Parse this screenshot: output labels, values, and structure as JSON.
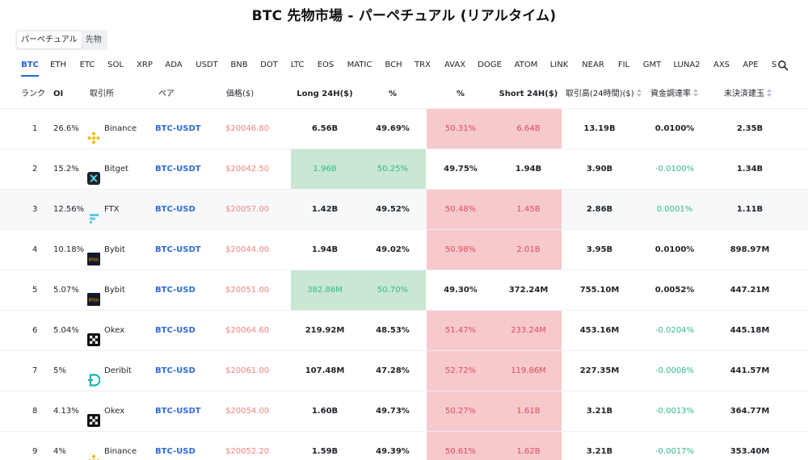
{
  "title": "BTC 先物市場 - パーペチュアル (リアルタイム)",
  "mode_toggle": {
    "options": [
      "パーペチュアル",
      "先物"
    ],
    "active": 0
  },
  "coin_tabs": [
    "BTC",
    "ETH",
    "ETC",
    "SOL",
    "XRP",
    "ADA",
    "USDT",
    "BNB",
    "DOT",
    "LTC",
    "EOS",
    "MATIC",
    "BCH",
    "TRX",
    "AVAX",
    "DOGE",
    "ATOM",
    "LINK",
    "NEAR",
    "FIL",
    "GMT",
    "LUNA2",
    "AXS",
    "APE",
    "S"
  ],
  "active_coin": 0,
  "search": {
    "icon": "search-icon"
  },
  "columns": {
    "rank": "ランク",
    "oi": "OI",
    "exchange": "取引所",
    "pair": "ペア",
    "price": "価格($)",
    "long24h": "Long 24H($)",
    "long_pct": "%",
    "short_pct": "%",
    "short24h": "Short 24H($)",
    "volume": "取引高(24時間)($)",
    "funding": "資金調達率",
    "open_interest": "未決済建玉"
  },
  "colors": {
    "accent": "#1e63d6",
    "long_bg": "#c9e7d3",
    "short_bg": "#f6c9cd",
    "positive": "#2ebd85",
    "negative": "#e04a59"
  },
  "rows": [
    {
      "rank": "1",
      "oi": "26.6%",
      "exchange": "Binance",
      "logo": "binance",
      "pair": "BTC-USDT",
      "price": "$20046.80",
      "long": "6.56B",
      "long_pct": "49.69%",
      "short_pct": "50.31%",
      "short": "6.64B",
      "volume": "13.19B",
      "funding": "0.0100%",
      "funding_sign": "neutral",
      "open_interest": "2.35B",
      "dominant": "short"
    },
    {
      "rank": "2",
      "oi": "15.2%",
      "exchange": "Bitget",
      "logo": "bitget",
      "pair": "BTC-USDT",
      "price": "$20042.50",
      "long": "1.96B",
      "long_pct": "50.25%",
      "short_pct": "49.75%",
      "short": "1.94B",
      "volume": "3.90B",
      "funding": "-0.0100%",
      "funding_sign": "negative",
      "open_interest": "1.34B",
      "dominant": "long"
    },
    {
      "rank": "3",
      "oi": "12.56%",
      "exchange": "FTX",
      "logo": "ftx",
      "pair": "BTC-USD",
      "price": "$20057.00",
      "long": "1.42B",
      "long_pct": "49.52%",
      "short_pct": "50.48%",
      "short": "1.45B",
      "volume": "2.86B",
      "funding": "0.0001%",
      "funding_sign": "positive",
      "open_interest": "1.11B",
      "dominant": "short",
      "highlight": true
    },
    {
      "rank": "4",
      "oi": "10.18%",
      "exchange": "Bybit",
      "logo": "bybit",
      "pair": "BTC-USDT",
      "price": "$20044.00",
      "long": "1.94B",
      "long_pct": "49.02%",
      "short_pct": "50.98%",
      "short": "2.01B",
      "volume": "3.95B",
      "funding": "0.0100%",
      "funding_sign": "neutral",
      "open_interest": "898.97M",
      "dominant": "short"
    },
    {
      "rank": "5",
      "oi": "5.07%",
      "exchange": "Bybit",
      "logo": "bybit",
      "pair": "BTC-USD",
      "price": "$20051.00",
      "long": "382.86M",
      "long_pct": "50.70%",
      "short_pct": "49.30%",
      "short": "372.24M",
      "volume": "755.10M",
      "funding": "0.0052%",
      "funding_sign": "neutral",
      "open_interest": "447.21M",
      "dominant": "long"
    },
    {
      "rank": "6",
      "oi": "5.04%",
      "exchange": "Okex",
      "logo": "okex",
      "pair": "BTC-USD",
      "price": "$20064.60",
      "long": "219.92M",
      "long_pct": "48.53%",
      "short_pct": "51.47%",
      "short": "233.24M",
      "volume": "453.16M",
      "funding": "-0.0204%",
      "funding_sign": "negative",
      "open_interest": "445.18M",
      "dominant": "short"
    },
    {
      "rank": "7",
      "oi": "5%",
      "exchange": "Deribit",
      "logo": "deribit",
      "pair": "BTC-USD",
      "price": "$20061.00",
      "long": "107.48M",
      "long_pct": "47.28%",
      "short_pct": "52.72%",
      "short": "119.86M",
      "volume": "227.35M",
      "funding": "-0.0008%",
      "funding_sign": "negative",
      "open_interest": "441.57M",
      "dominant": "short"
    },
    {
      "rank": "8",
      "oi": "4.13%",
      "exchange": "Okex",
      "logo": "okex",
      "pair": "BTC-USDT",
      "price": "$20054.00",
      "long": "1.60B",
      "long_pct": "49.73%",
      "short_pct": "50.27%",
      "short": "1.61B",
      "volume": "3.21B",
      "funding": "-0.0013%",
      "funding_sign": "negative",
      "open_interest": "364.77M",
      "dominant": "short"
    },
    {
      "rank": "9",
      "oi": "4%",
      "exchange": "Binance",
      "logo": "binance",
      "pair": "BTC-USD",
      "price": "$20052.20",
      "long": "1.59B",
      "long_pct": "49.39%",
      "short_pct": "50.61%",
      "short": "1.62B",
      "volume": "3.21B",
      "funding": "-0.0017%",
      "funding_sign": "negative",
      "open_interest": "353.40M",
      "dominant": "short"
    }
  ]
}
